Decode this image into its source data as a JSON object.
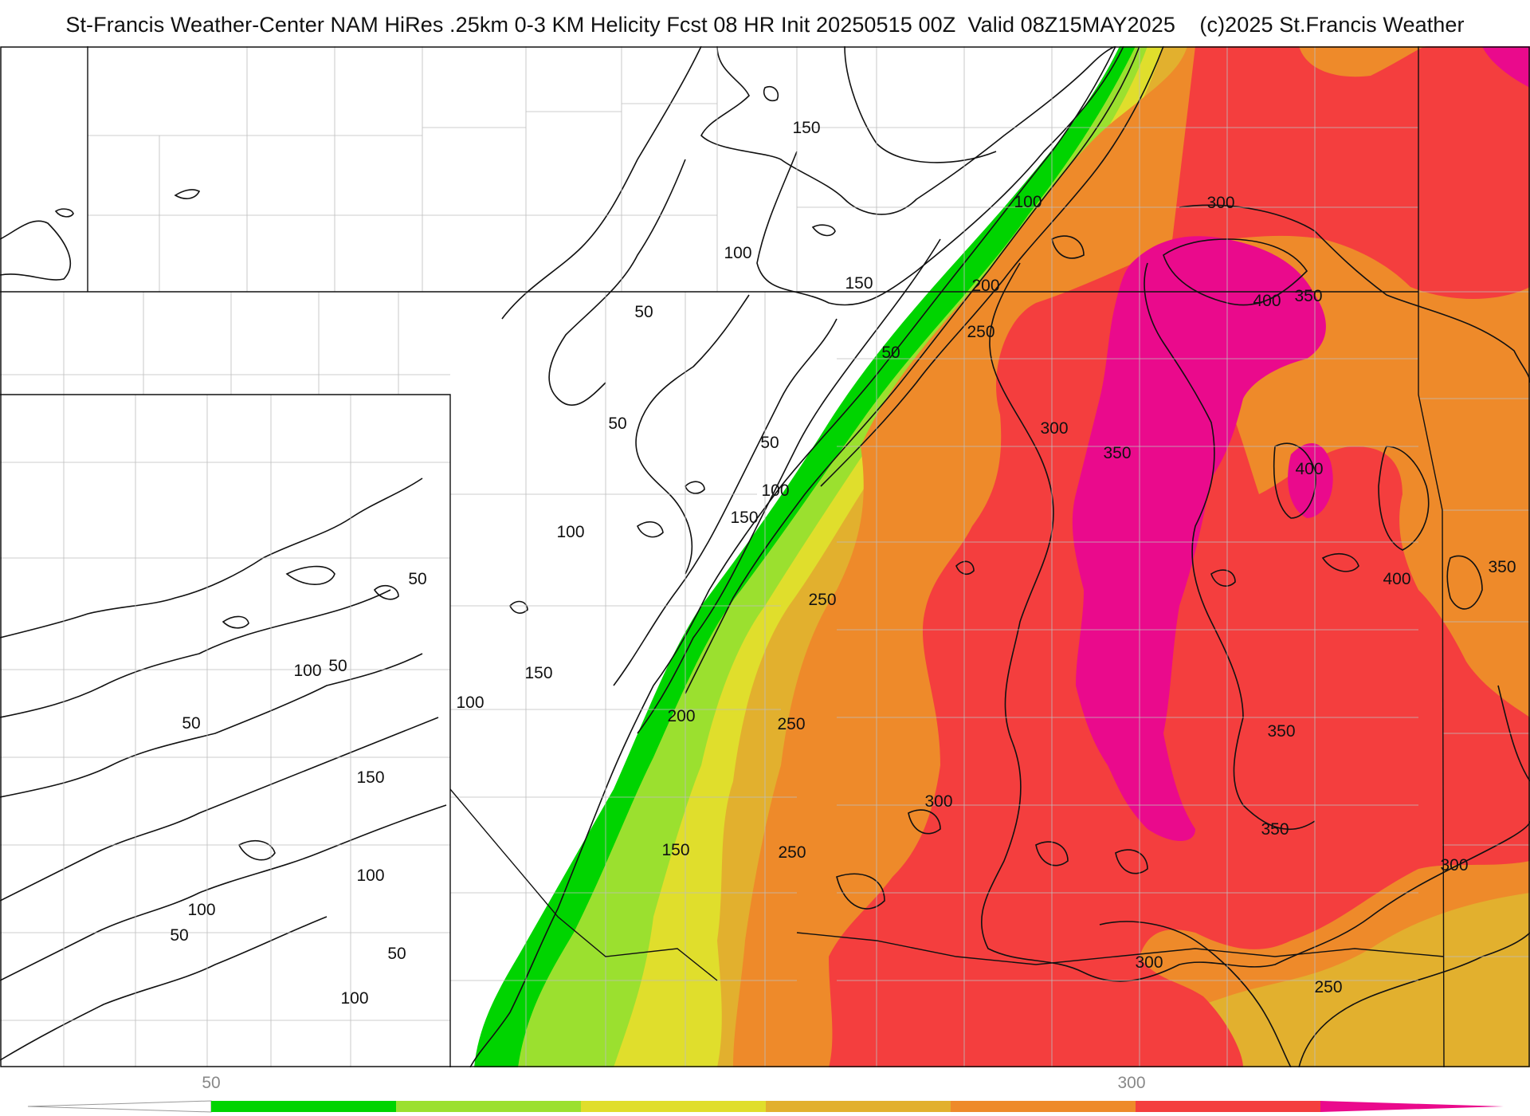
{
  "header": {
    "title": "St-Francis Weather-Center NAM HiRes .25km 0-3 KM Helicity Fcst 08 HR Init 20250515 00Z  Valid 08Z15MAY2025    (c)2025 St.Francis Weather"
  },
  "map": {
    "field": "0-3 KM Helicity",
    "fill_colors": {
      "below": "#ffffff",
      "c50": "#00d400",
      "c100": "#9be02f",
      "c150": "#e0de2c",
      "c200": "#e2b02e",
      "c250": "#ee8a2a",
      "c300": "#f43e3e",
      "c350": "#ea0a8c"
    },
    "contour_labels": [
      "150",
      "100",
      "100",
      "150",
      "50",
      "50",
      "50",
      "50",
      "100",
      "150",
      "100",
      "50",
      "50",
      "100",
      "50",
      "150",
      "100",
      "150",
      "100",
      "50",
      "100",
      "50",
      "100",
      "200",
      "250",
      "250",
      "250",
      "200",
      "150",
      "250",
      "300",
      "300",
      "300",
      "350",
      "400",
      "350",
      "400",
      "400",
      "350",
      "350",
      "350",
      "300",
      "300",
      "250"
    ]
  },
  "colorbar": {
    "tick_labels": [
      "50",
      "300"
    ],
    "colors": [
      "#00d400",
      "#9be02f",
      "#e0de2c",
      "#e2b02e",
      "#ee8a2a",
      "#f43e3e",
      "#ea0a8c"
    ]
  }
}
